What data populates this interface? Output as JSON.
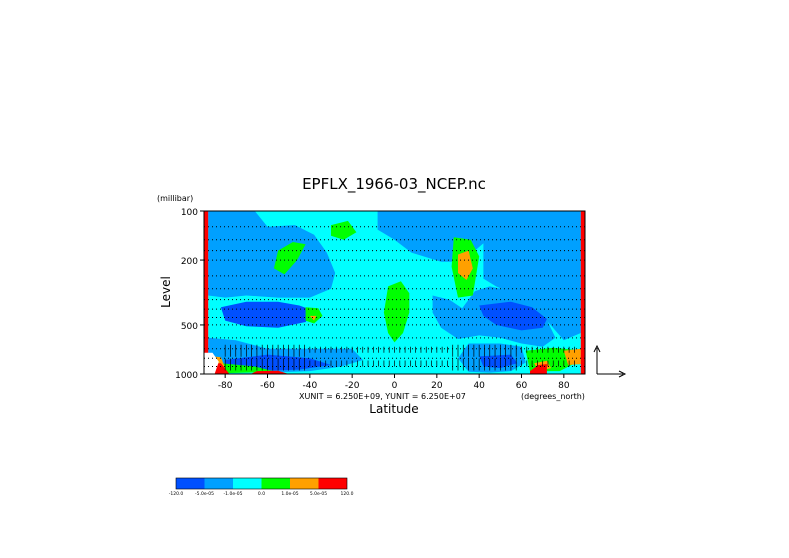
{
  "chart_data": {
    "type": "heatmap",
    "title": "EPFLX_1966-03_NCEP.nc",
    "xlabel": "Latitude",
    "ylabel": "Level",
    "y_unit_label": "(millibar)",
    "x_unit_label": "(degrees_north)",
    "unit_note": "XUNIT = 6.250E+09, YUNIT = 6.250E+07",
    "x_ticks": [
      -80,
      -60,
      -40,
      -20,
      0,
      20,
      40,
      60,
      80
    ],
    "x_tick_labels": [
      "-80",
      "-60",
      "-40",
      "-20",
      "0",
      "20",
      "40",
      "60",
      "80"
    ],
    "y_ticks": [
      100,
      200,
      500,
      1000
    ],
    "y_tick_labels": [
      "100",
      "200",
      "500",
      "1000"
    ],
    "xlim": [
      -90,
      90
    ],
    "ylim": [
      1000,
      100
    ],
    "y_scale": "log",
    "levels": [
      -120,
      -5e-05,
      -1e-05,
      0,
      1e-05,
      5e-05,
      120
    ],
    "colorbar_labels": [
      "-120.0",
      "-5.0e-05",
      "-1.0e-05",
      "0.0",
      "1.0e-05",
      "5.0e-05",
      "120.0"
    ],
    "colors": [
      "#0050ff",
      "#00a0ff",
      "#00ffff",
      "#00ff00",
      "#ffa000",
      "#ff0000"
    ],
    "regions": [
      {
        "category": 2,
        "points": [
          [
            -88,
            100
          ],
          [
            88,
            100
          ],
          [
            88,
            1000
          ],
          [
            -88,
            1000
          ]
        ]
      },
      {
        "category": 1,
        "points": [
          [
            -88,
            100
          ],
          [
            -66,
            100
          ],
          [
            -60,
            125
          ],
          [
            -47,
            122
          ],
          [
            -38,
            140
          ],
          [
            -32,
            180
          ],
          [
            -28,
            240
          ],
          [
            -30,
            300
          ],
          [
            -40,
            340
          ],
          [
            -55,
            340
          ],
          [
            -70,
            330
          ],
          [
            -80,
            340
          ],
          [
            -88,
            330
          ]
        ]
      },
      {
        "category": 1,
        "points": [
          [
            -8,
            100
          ],
          [
            50,
            100
          ],
          [
            50,
            130
          ],
          [
            44,
            150
          ],
          [
            38,
            175
          ],
          [
            32,
            205
          ],
          [
            22,
            205
          ],
          [
            8,
            180
          ],
          [
            0,
            150
          ],
          [
            -8,
            130
          ]
        ]
      },
      {
        "category": 1,
        "points": [
          [
            42,
            100
          ],
          [
            88,
            100
          ],
          [
            88,
            560
          ],
          [
            80,
            620
          ],
          [
            70,
            440
          ],
          [
            60,
            340
          ],
          [
            48,
            290
          ],
          [
            42,
            260
          ]
        ]
      },
      {
        "category": 1,
        "points": [
          [
            18,
            330
          ],
          [
            26,
            350
          ],
          [
            32,
            395
          ],
          [
            38,
            310
          ],
          [
            45,
            290
          ],
          [
            55,
            310
          ],
          [
            68,
            360
          ],
          [
            76,
            600
          ],
          [
            70,
            680
          ],
          [
            60,
            650
          ],
          [
            50,
            600
          ],
          [
            40,
            580
          ],
          [
            30,
            610
          ],
          [
            22,
            520
          ],
          [
            18,
            420
          ]
        ]
      },
      {
        "category": 1,
        "points": [
          [
            -88,
            600
          ],
          [
            -75,
            620
          ],
          [
            -60,
            700
          ],
          [
            -45,
            700
          ],
          [
            -30,
            700
          ],
          [
            -20,
            700
          ],
          [
            -15,
            820
          ],
          [
            -25,
            900
          ],
          [
            -40,
            960
          ],
          [
            -60,
            980
          ],
          [
            -80,
            960
          ],
          [
            -88,
            900
          ]
        ]
      },
      {
        "category": 1,
        "points": [
          [
            35,
            650
          ],
          [
            50,
            650
          ],
          [
            60,
            680
          ],
          [
            62,
            850
          ],
          [
            55,
            960
          ],
          [
            45,
            980
          ],
          [
            35,
            970
          ],
          [
            30,
            800
          ]
        ]
      },
      {
        "category": 0,
        "points": [
          [
            -82,
            390
          ],
          [
            -70,
            360
          ],
          [
            -55,
            360
          ],
          [
            -45,
            380
          ],
          [
            -38,
            410
          ],
          [
            -42,
            480
          ],
          [
            -55,
            520
          ],
          [
            -70,
            510
          ],
          [
            -80,
            470
          ]
        ]
      },
      {
        "category": 0,
        "points": [
          [
            -80,
            820
          ],
          [
            -60,
            760
          ],
          [
            -40,
            800
          ],
          [
            -30,
            880
          ],
          [
            -45,
            940
          ],
          [
            -65,
            960
          ],
          [
            -80,
            930
          ]
        ]
      },
      {
        "category": 0,
        "points": [
          [
            40,
            380
          ],
          [
            55,
            360
          ],
          [
            65,
            390
          ],
          [
            72,
            460
          ],
          [
            70,
            520
          ],
          [
            60,
            540
          ],
          [
            48,
            500
          ],
          [
            42,
            440
          ]
        ]
      },
      {
        "category": 0,
        "points": [
          [
            40,
            780
          ],
          [
            55,
            760
          ],
          [
            58,
            860
          ],
          [
            50,
            920
          ],
          [
            42,
            900
          ]
        ]
      },
      {
        "category": 3,
        "points": [
          [
            -55,
            175
          ],
          [
            -48,
            155
          ],
          [
            -42,
            160
          ],
          [
            -46,
            200
          ],
          [
            -52,
            245
          ],
          [
            -57,
            225
          ]
        ]
      },
      {
        "category": 3,
        "points": [
          [
            -30,
            122
          ],
          [
            -22,
            115
          ],
          [
            -18,
            135
          ],
          [
            -24,
            150
          ],
          [
            -30,
            142
          ]
        ]
      },
      {
        "category": 3,
        "points": [
          [
            -42,
            390
          ],
          [
            -36,
            395
          ],
          [
            -34,
            440
          ],
          [
            -38,
            490
          ],
          [
            -42,
            470
          ]
        ]
      },
      {
        "category": 3,
        "points": [
          [
            -3,
            290
          ],
          [
            3,
            270
          ],
          [
            7,
            320
          ],
          [
            7,
            420
          ],
          [
            4,
            560
          ],
          [
            0,
            640
          ],
          [
            -3,
            560
          ],
          [
            -5,
            420
          ]
        ]
      },
      {
        "category": 3,
        "points": [
          [
            28,
            145
          ],
          [
            36,
            150
          ],
          [
            40,
            190
          ],
          [
            37,
            330
          ],
          [
            30,
            340
          ],
          [
            27,
            220
          ]
        ]
      },
      {
        "category": 3,
        "points": [
          [
            62,
            720
          ],
          [
            75,
            690
          ],
          [
            85,
            710
          ],
          [
            86,
            850
          ],
          [
            78,
            960
          ],
          [
            64,
            960
          ]
        ]
      },
      {
        "category": 3,
        "points": [
          [
            -82,
            860
          ],
          [
            -66,
            900
          ],
          [
            -56,
            970
          ],
          [
            -82,
            990
          ]
        ]
      },
      {
        "category": 4,
        "points": [
          [
            30,
            185
          ],
          [
            35,
            175
          ],
          [
            37,
            225
          ],
          [
            34,
            265
          ],
          [
            30,
            240
          ]
        ]
      },
      {
        "category": 4,
        "points": [
          [
            -40,
            440
          ],
          [
            -37,
            440
          ],
          [
            -38,
            470
          ]
        ]
      },
      {
        "category": 4,
        "points": [
          [
            80,
            720
          ],
          [
            88,
            700
          ],
          [
            88,
            870
          ],
          [
            82,
            880
          ]
        ]
      },
      {
        "category": 4,
        "points": [
          [
            66,
            860
          ],
          [
            72,
            830
          ],
          [
            74,
            920
          ],
          [
            68,
            960
          ]
        ]
      },
      {
        "category": 4,
        "points": [
          [
            -86,
            780
          ],
          [
            -82,
            790
          ],
          [
            -80,
            920
          ],
          [
            -86,
            940
          ]
        ]
      },
      {
        "category": 5,
        "points": [
          [
            -90,
            100
          ],
          [
            -88,
            100
          ],
          [
            -88,
            1000
          ],
          [
            -90,
            1000
          ]
        ]
      },
      {
        "category": 5,
        "points": [
          [
            88,
            100
          ],
          [
            90,
            100
          ],
          [
            90,
            1000
          ],
          [
            88,
            1000
          ]
        ]
      },
      {
        "category": 5,
        "points": [
          [
            -86,
            860
          ],
          [
            -82,
            860
          ],
          [
            -78,
            1000
          ],
          [
            -86,
            1000
          ]
        ]
      },
      {
        "category": 5,
        "points": [
          [
            -65,
            960
          ],
          [
            -55,
            955
          ],
          [
            -50,
            1000
          ],
          [
            -68,
            1000
          ]
        ]
      },
      {
        "category": 5,
        "points": [
          [
            64,
            960
          ],
          [
            68,
            880
          ],
          [
            72,
            870
          ],
          [
            72,
            1000
          ],
          [
            64,
            1000
          ]
        ]
      }
    ],
    "white_regions": [
      {
        "points": [
          [
            -90,
            740
          ],
          [
            -86,
            740
          ],
          [
            -83,
            840
          ],
          [
            -85,
            1000
          ],
          [
            -90,
            1000
          ]
        ]
      }
    ],
    "quiver_x_range": [
      -80,
      85
    ],
    "quiver_y_levels": [
      700,
      850
    ]
  }
}
